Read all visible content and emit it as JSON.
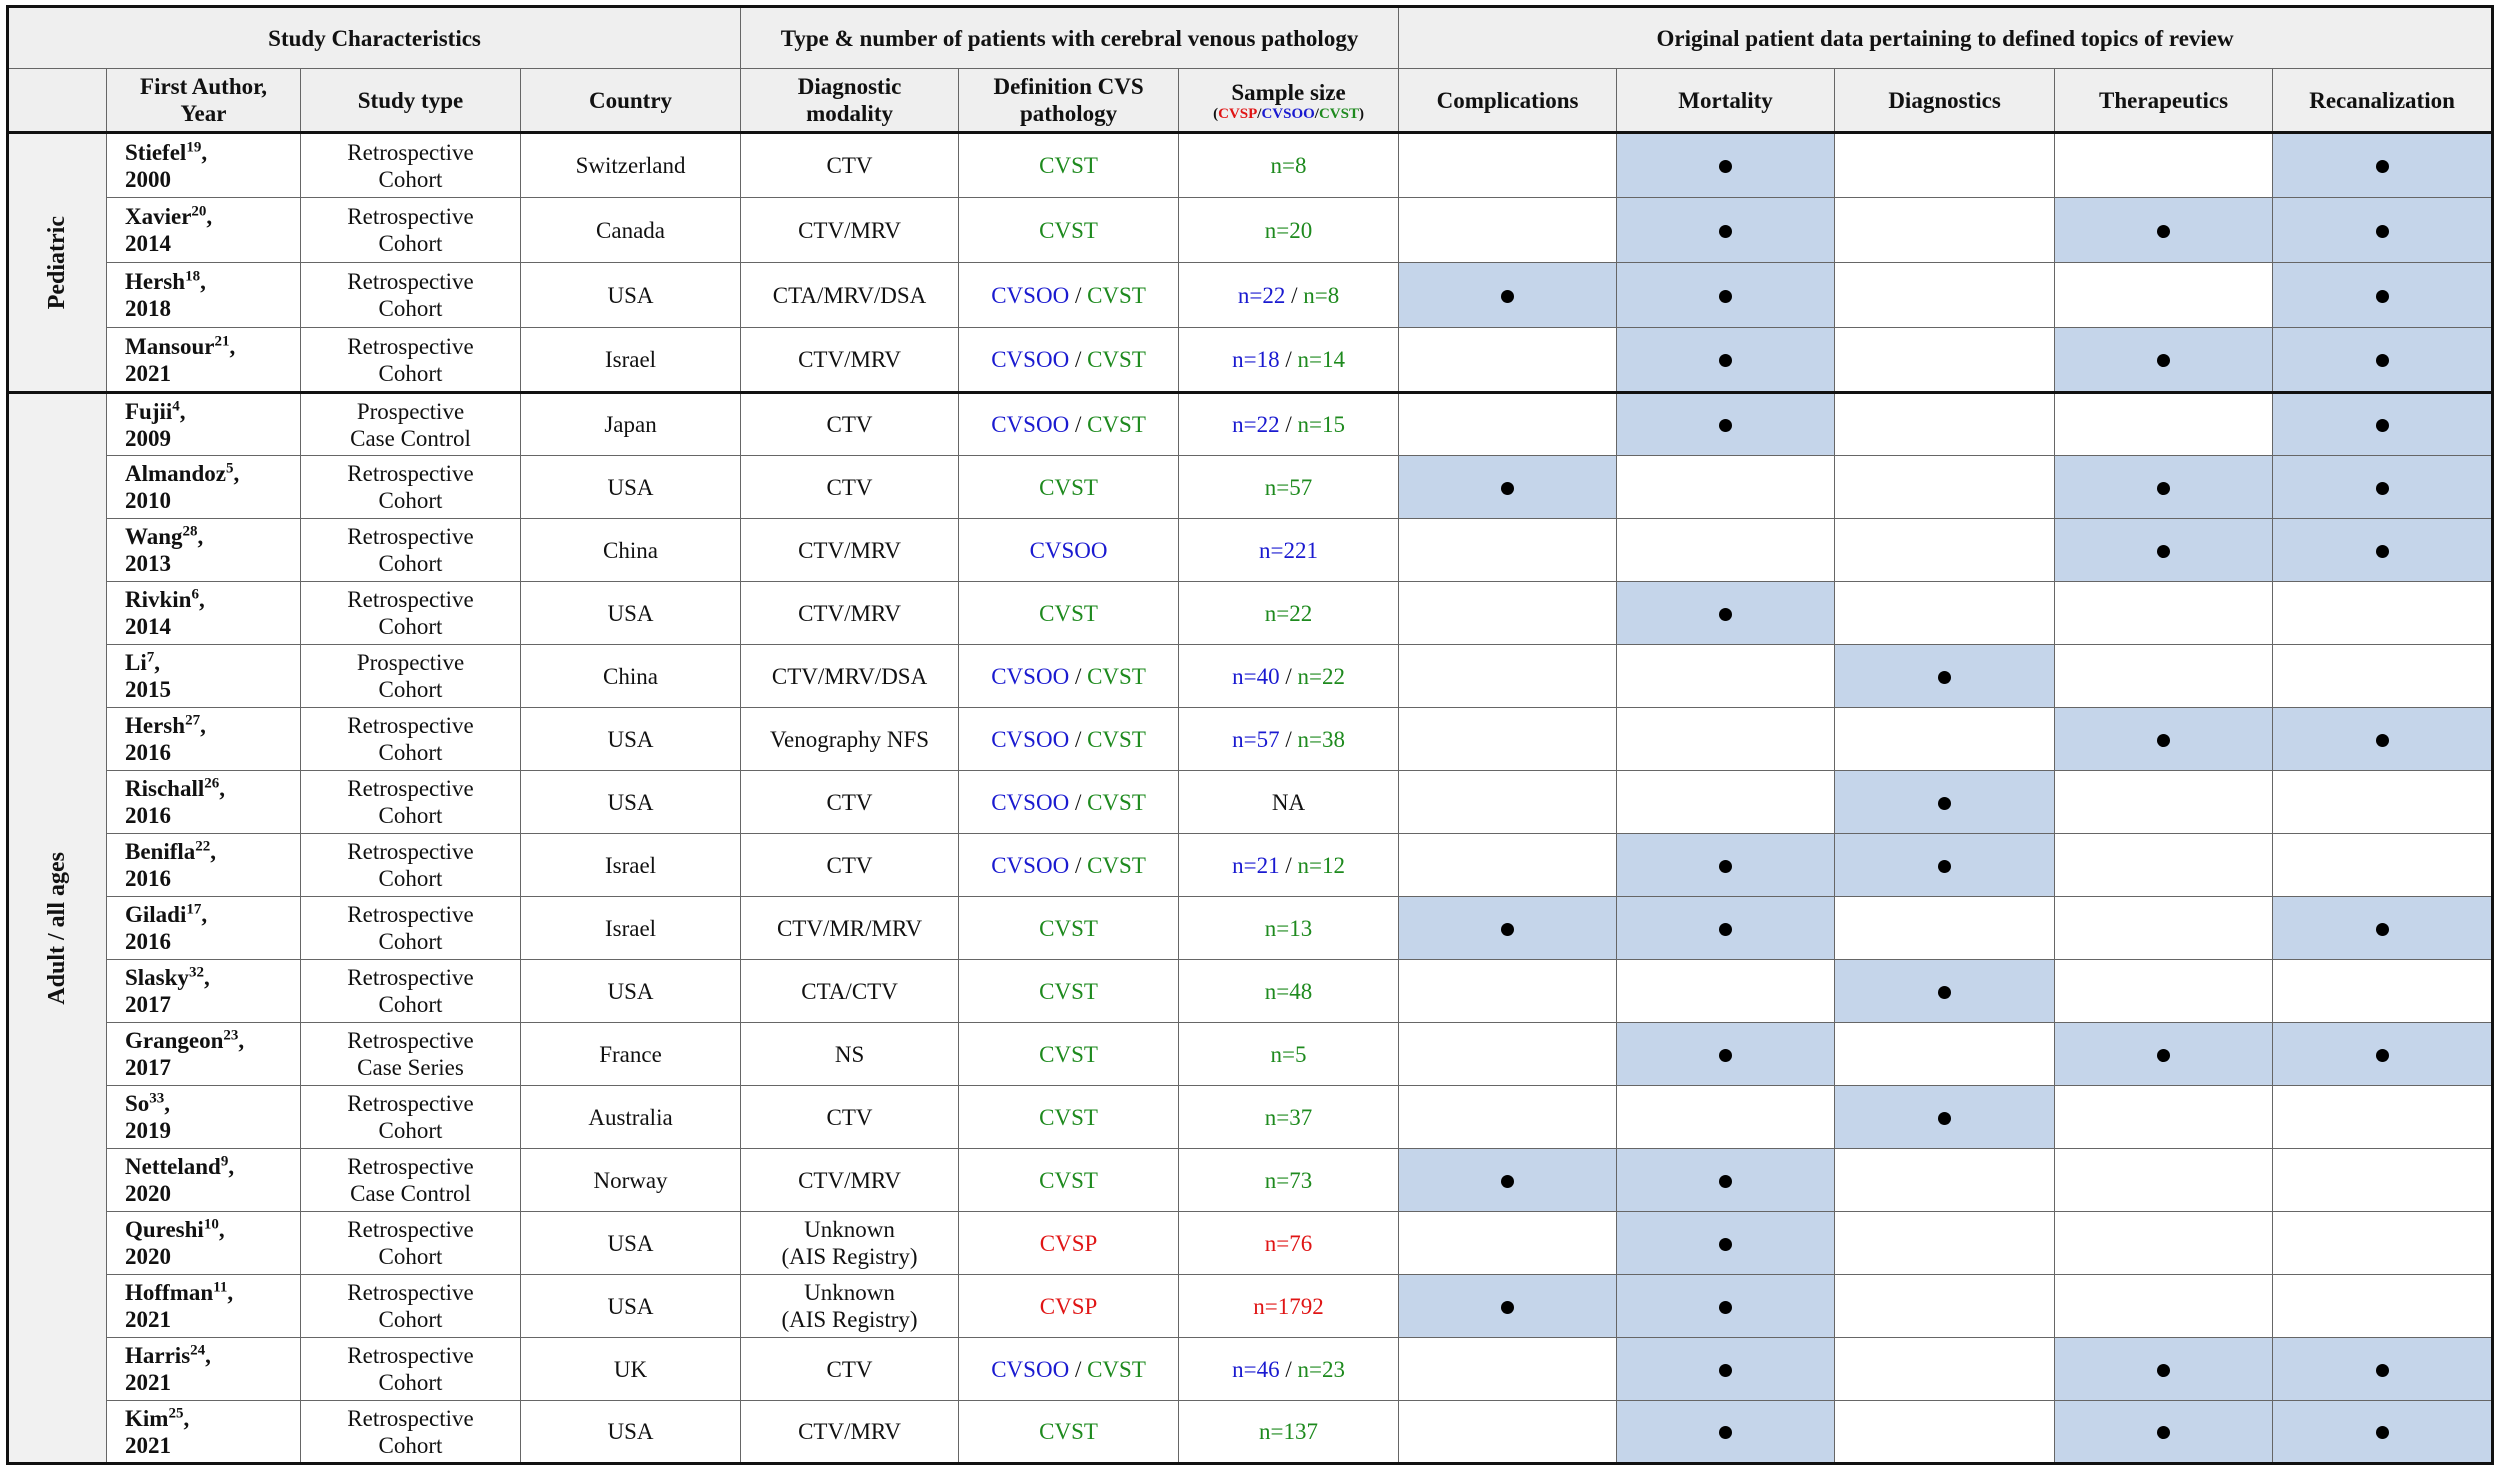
{
  "table": {
    "header": {
      "top": [
        "Study Characteristics",
        "Type & number of patients with cerebral venous pathology",
        "Original patient data pertaining to defined topics of review"
      ],
      "columns": [
        [
          "First Author,",
          "Year"
        ],
        [
          "Study type"
        ],
        [
          "Country"
        ],
        [
          "Diagnostic",
          "modality"
        ],
        [
          "Definition CVS",
          "pathology"
        ],
        [
          "Sample size"
        ],
        [
          "Complications"
        ],
        [
          "Mortality"
        ],
        [
          "Diagnostics"
        ],
        [
          "Therapeutics"
        ],
        [
          "Recanalization"
        ]
      ],
      "sample_legend": [
        "(",
        "CVSP",
        "/",
        "CVSOO",
        "/",
        "CVST",
        ")"
      ]
    },
    "term_colors": {
      "CVSP": "#e01515",
      "CVSOO": "#1a1ad0",
      "CVST": "#1e8a1e"
    },
    "author_sep": ",",
    "pair_sep": " / ",
    "groups": [
      {
        "label": "Pediatric",
        "rows": [
          {
            "author": "Stiefel",
            "ref": "19",
            "year": "2000",
            "type": [
              "Retrospective",
              "Cohort"
            ],
            "country": "Switzerland",
            "modality": [
              "CTV"
            ],
            "definition": [
              "CVST"
            ],
            "sample": [
              {
                "text": "n=8",
                "term": "CVST"
              }
            ],
            "topics": [
              false,
              true,
              false,
              false,
              true
            ]
          },
          {
            "author": "Xavier",
            "ref": "20",
            "year": "2014",
            "type": [
              "Retrospective",
              "Cohort"
            ],
            "country": "Canada",
            "modality": [
              "CTV/MRV"
            ],
            "definition": [
              "CVST"
            ],
            "sample": [
              {
                "text": "n=20",
                "term": "CVST"
              }
            ],
            "topics": [
              false,
              true,
              false,
              true,
              true
            ]
          },
          {
            "author": "Hersh",
            "ref": "18",
            "year": "2018",
            "type": [
              "Retrospective",
              "Cohort"
            ],
            "country": "USA",
            "modality": [
              "CTA/MRV/DSA"
            ],
            "definition": [
              "CVSOO",
              "CVST"
            ],
            "sample": [
              {
                "text": "n=22",
                "term": "CVSOO"
              },
              {
                "text": "n=8",
                "term": "CVST"
              }
            ],
            "topics": [
              true,
              true,
              false,
              false,
              true
            ]
          },
          {
            "author": "Mansour",
            "ref": "21",
            "year": "2021",
            "type": [
              "Retrospective",
              "Cohort"
            ],
            "country": "Israel",
            "modality": [
              "CTV/MRV"
            ],
            "definition": [
              "CVSOO",
              "CVST"
            ],
            "sample": [
              {
                "text": "n=18",
                "term": "CVSOO"
              },
              {
                "text": "n=14",
                "term": "CVST"
              }
            ],
            "topics": [
              false,
              true,
              false,
              true,
              true
            ]
          }
        ]
      },
      {
        "label": "Adult / all ages",
        "rows": [
          {
            "author": "Fujii",
            "ref": "4",
            "year": "2009",
            "type": [
              "Prospective",
              "Case Control"
            ],
            "country": "Japan",
            "modality": [
              "CTV"
            ],
            "definition": [
              "CVSOO",
              "CVST"
            ],
            "sample": [
              {
                "text": "n=22",
                "term": "CVSOO"
              },
              {
                "text": "n=15",
                "term": "CVST"
              }
            ],
            "topics": [
              false,
              true,
              false,
              false,
              true
            ]
          },
          {
            "author": "Almandoz",
            "ref": "5",
            "year": "2010",
            "type": [
              "Retrospective",
              "Cohort"
            ],
            "country": "USA",
            "modality": [
              "CTV"
            ],
            "definition": [
              "CVST"
            ],
            "sample": [
              {
                "text": "n=57",
                "term": "CVST"
              }
            ],
            "topics": [
              true,
              false,
              false,
              true,
              true
            ]
          },
          {
            "author": "Wang",
            "ref": "28",
            "year": "2013",
            "type": [
              "Retrospective",
              "Cohort"
            ],
            "country": "China",
            "modality": [
              "CTV/MRV"
            ],
            "definition": [
              "CVSOO"
            ],
            "sample": [
              {
                "text": "n=221",
                "term": "CVSOO"
              }
            ],
            "topics": [
              false,
              false,
              false,
              true,
              true
            ]
          },
          {
            "author": "Rivkin",
            "ref": "6",
            "year": "2014",
            "type": [
              "Retrospective",
              "Cohort"
            ],
            "country": "USA",
            "modality": [
              "CTV/MRV"
            ],
            "definition": [
              "CVST"
            ],
            "sample": [
              {
                "text": "n=22",
                "term": "CVST"
              }
            ],
            "topics": [
              false,
              true,
              false,
              false,
              false
            ]
          },
          {
            "author": "Li",
            "ref": "7",
            "year": "2015",
            "type": [
              "Prospective",
              "Cohort"
            ],
            "country": "China",
            "modality": [
              "CTV/MRV/DSA"
            ],
            "definition": [
              "CVSOO",
              "CVST"
            ],
            "sample": [
              {
                "text": "n=40",
                "term": "CVSOO"
              },
              {
                "text": "n=22",
                "term": "CVST"
              }
            ],
            "topics": [
              false,
              false,
              true,
              false,
              false
            ]
          },
          {
            "author": "Hersh",
            "ref": "27",
            "year": "2016",
            "type": [
              "Retrospective",
              "Cohort"
            ],
            "country": "USA",
            "modality": [
              "Venography NFS"
            ],
            "definition": [
              "CVSOO",
              "CVST"
            ],
            "sample": [
              {
                "text": "n=57",
                "term": "CVSOO"
              },
              {
                "text": "n=38",
                "term": "CVST"
              }
            ],
            "topics": [
              false,
              false,
              false,
              true,
              true
            ]
          },
          {
            "author": "Rischall",
            "ref": "26",
            "year": "2016",
            "type": [
              "Retrospective",
              "Cohort"
            ],
            "country": "USA",
            "modality": [
              "CTV"
            ],
            "definition": [
              "CVSOO",
              "CVST"
            ],
            "sample": [
              {
                "text": "NA",
                "term": null
              }
            ],
            "topics": [
              false,
              false,
              true,
              false,
              false
            ]
          },
          {
            "author": "Benifla",
            "ref": "22",
            "year": "2016",
            "type": [
              "Retrospective",
              "Cohort"
            ],
            "country": "Israel",
            "modality": [
              "CTV"
            ],
            "definition": [
              "CVSOO",
              "CVST"
            ],
            "sample": [
              {
                "text": "n=21",
                "term": "CVSOO"
              },
              {
                "text": "n=12",
                "term": "CVST"
              }
            ],
            "topics": [
              false,
              true,
              true,
              false,
              false
            ]
          },
          {
            "author": "Giladi",
            "ref": "17",
            "year": "2016",
            "type": [
              "Retrospective",
              "Cohort"
            ],
            "country": "Israel",
            "modality": [
              "CTV/MR/MRV"
            ],
            "definition": [
              "CVST"
            ],
            "sample": [
              {
                "text": "n=13",
                "term": "CVST"
              }
            ],
            "topics": [
              true,
              true,
              false,
              false,
              true
            ]
          },
          {
            "author": "Slasky",
            "ref": "32",
            "year": "2017",
            "type": [
              "Retrospective",
              "Cohort"
            ],
            "country": "USA",
            "modality": [
              "CTA/CTV"
            ],
            "definition": [
              "CVST"
            ],
            "sample": [
              {
                "text": "n=48",
                "term": "CVST"
              }
            ],
            "topics": [
              false,
              false,
              true,
              false,
              false
            ]
          },
          {
            "author": "Grangeon",
            "ref": "23",
            "year": "2017",
            "type": [
              "Retrospective",
              "Case Series"
            ],
            "country": "France",
            "modality": [
              "NS"
            ],
            "definition": [
              "CVST"
            ],
            "sample": [
              {
                "text": "n=5",
                "term": "CVST"
              }
            ],
            "topics": [
              false,
              true,
              false,
              true,
              true
            ]
          },
          {
            "author": "So",
            "ref": "33",
            "year": "2019",
            "type": [
              "Retrospective",
              "Cohort"
            ],
            "country": "Australia",
            "modality": [
              "CTV"
            ],
            "definition": [
              "CVST"
            ],
            "sample": [
              {
                "text": "n=37",
                "term": "CVST"
              }
            ],
            "topics": [
              false,
              false,
              true,
              false,
              false
            ]
          },
          {
            "author": "Netteland",
            "ref": "9",
            "year": "2020",
            "type": [
              "Retrospective",
              "Case Control"
            ],
            "country": "Norway",
            "modality": [
              "CTV/MRV"
            ],
            "definition": [
              "CVST"
            ],
            "sample": [
              {
                "text": "n=73",
                "term": "CVST"
              }
            ],
            "topics": [
              true,
              true,
              false,
              false,
              false
            ]
          },
          {
            "author": "Qureshi",
            "ref": "10",
            "year": "2020",
            "type": [
              "Retrospective",
              "Cohort"
            ],
            "country": "USA",
            "modality": [
              "Unknown",
              "(AIS Registry)"
            ],
            "definition": [
              "CVSP"
            ],
            "sample": [
              {
                "text": "n=76",
                "term": "CVSP"
              }
            ],
            "topics": [
              false,
              true,
              false,
              false,
              false
            ]
          },
          {
            "author": "Hoffman",
            "ref": "11",
            "year": "2021",
            "type": [
              "Retrospective",
              "Cohort"
            ],
            "country": "USA",
            "modality": [
              "Unknown",
              "(AIS Registry)"
            ],
            "definition": [
              "CVSP"
            ],
            "sample": [
              {
                "text": "n=1792",
                "term": "CVSP"
              }
            ],
            "topics": [
              true,
              true,
              false,
              false,
              false
            ]
          },
          {
            "author": "Harris",
            "ref": "24",
            "year": "2021",
            "type": [
              "Retrospective",
              "Cohort"
            ],
            "country": "UK",
            "modality": [
              "CTV"
            ],
            "definition": [
              "CVSOO",
              "CVST"
            ],
            "sample": [
              {
                "text": "n=46",
                "term": "CVSOO"
              },
              {
                "text": "n=23",
                "term": "CVST"
              }
            ],
            "topics": [
              false,
              true,
              false,
              true,
              true
            ]
          },
          {
            "author": "Kim",
            "ref": "25",
            "year": "2021",
            "type": [
              "Retrospective",
              "Cohort"
            ],
            "country": "USA",
            "modality": [
              "CTV/MRV"
            ],
            "definition": [
              "CVST"
            ],
            "sample": [
              {
                "text": "n=137",
                "term": "CVST"
              }
            ],
            "topics": [
              false,
              true,
              false,
              true,
              true
            ]
          }
        ]
      }
    ]
  }
}
